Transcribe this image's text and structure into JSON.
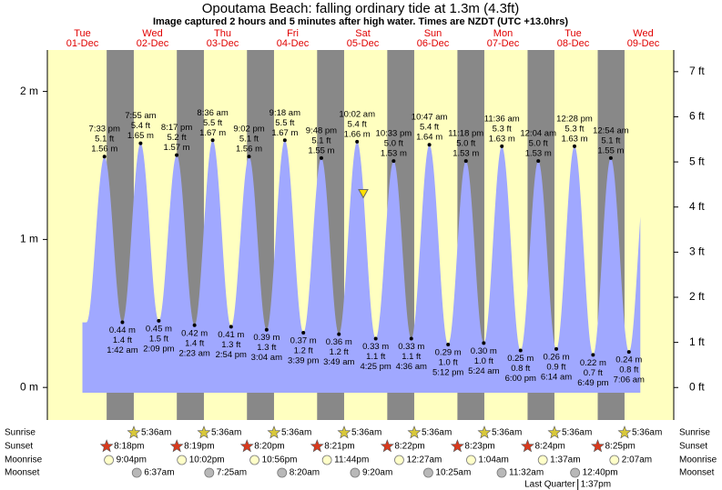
{
  "chart_data": {
    "type": "tide",
    "title": "Opoutama Beach: falling  ordinary tide at 1.3m (4.3ft)",
    "subtitle": "Image captured 2 hours and 5 minutes after high water. Times are NZDT (UTC +13.0hrs)",
    "current_height": 1.3,
    "ylim": [
      -0.22,
      2.28
    ],
    "yticks": [
      {
        "value": 0,
        "label": "0 m"
      },
      {
        "value": 1,
        "label": "1 m"
      },
      {
        "value": 2,
        "label": "2 m"
      }
    ],
    "y2lim": [
      -0.72,
      7.48
    ],
    "y2ticks": [
      {
        "value": 0,
        "label": "0 ft"
      },
      {
        "value": 1,
        "label": "1 ft"
      },
      {
        "value": 2,
        "label": "2 ft"
      },
      {
        "value": 3,
        "label": "3 ft"
      },
      {
        "value": 4,
        "label": "4 ft"
      },
      {
        "value": 5,
        "label": "5 ft"
      },
      {
        "value": 6,
        "label": "6 ft"
      },
      {
        "value": 7,
        "label": "7 ft"
      }
    ],
    "colors": {
      "day": "#ffffc0",
      "night": "#888888",
      "tide": "#a0a8ff",
      "sunrise": "#d8c83a",
      "sunset": "#d83a1e",
      "moonrise": "#ffffc8",
      "moonset": "#b8b8b8"
    },
    "row_labels": [
      "Sunrise",
      "Sunset",
      "Moonrise",
      "Moonset"
    ],
    "moon_phase": "Last Quarter",
    "moon_phase_time": "1:37pm",
    "days": [
      {
        "weekday": "Tue",
        "date": "01-Dec",
        "sunset": "8:18pm",
        "moonrise": "9:04pm",
        "tides": [
          {
            "time": "7:33 pm",
            "height": 1.56,
            "height_label": "1.56 m",
            "feet_label": "5.1 ft"
          }
        ]
      },
      {
        "weekday": "Wed",
        "date": "02-Dec",
        "sunrise": "5:36am",
        "sunset": "8:19pm",
        "moonrise": "10:02pm",
        "moonset": "6:37am",
        "tides": [
          {
            "time": "1:42 am",
            "height": 0.44,
            "height_label": "0.44 m",
            "feet_label": "1.4 ft"
          },
          {
            "time": "7:55 am",
            "height": 1.65,
            "height_label": "1.65 m",
            "feet_label": "5.4 ft"
          },
          {
            "time": "2:09 pm",
            "height": 0.45,
            "height_label": "0.45 m",
            "feet_label": "1.5 ft"
          },
          {
            "time": "8:17 pm",
            "height": 1.57,
            "height_label": "1.57 m",
            "feet_label": "5.2 ft"
          }
        ]
      },
      {
        "weekday": "Thu",
        "date": "03-Dec",
        "sunrise": "5:36am",
        "sunset": "8:20pm",
        "moonrise": "10:56pm",
        "moonset": "7:25am",
        "tides": [
          {
            "time": "2:23 am",
            "height": 0.42,
            "height_label": "0.42 m",
            "feet_label": "1.4 ft"
          },
          {
            "time": "8:36 am",
            "height": 1.67,
            "height_label": "1.67 m",
            "feet_label": "5.5 ft"
          },
          {
            "time": "2:54 pm",
            "height": 0.41,
            "height_label": "0.41 m",
            "feet_label": "1.3 ft"
          },
          {
            "time": "9:02 pm",
            "height": 1.56,
            "height_label": "1.56 m",
            "feet_label": "5.1 ft"
          }
        ]
      },
      {
        "weekday": "Fri",
        "date": "04-Dec",
        "sunrise": "5:36am",
        "sunset": "8:21pm",
        "moonrise": "11:44pm",
        "moonset": "8:20am",
        "tides": [
          {
            "time": "3:04 am",
            "height": 0.39,
            "height_label": "0.39 m",
            "feet_label": "1.3 ft"
          },
          {
            "time": "9:18 am",
            "height": 1.67,
            "height_label": "1.67 m",
            "feet_label": "5.5 ft"
          },
          {
            "time": "3:39 pm",
            "height": 0.37,
            "height_label": "0.37 m",
            "feet_label": "1.2 ft"
          },
          {
            "time": "9:48 pm",
            "height": 1.55,
            "height_label": "1.55 m",
            "feet_label": "5.1 ft"
          }
        ]
      },
      {
        "weekday": "Sat",
        "date": "05-Dec",
        "sunrise": "5:36am",
        "sunset": "8:22pm",
        "moonset": "9:20am",
        "tides": [
          {
            "time": "3:49 am",
            "height": 0.36,
            "height_label": "0.36 m",
            "feet_label": "1.2 ft"
          },
          {
            "time": "10:02 am",
            "height": 1.66,
            "height_label": "1.66 m",
            "feet_label": "5.4 ft"
          },
          {
            "time": "4:25 pm",
            "height": 0.33,
            "height_label": "0.33 m",
            "feet_label": "1.1 ft"
          },
          {
            "time": "10:33 pm",
            "height": 1.53,
            "height_label": "1.53 m",
            "feet_label": "5.0 ft"
          }
        ]
      },
      {
        "weekday": "Sun",
        "date": "06-Dec",
        "sunrise": "5:36am",
        "sunset": "8:23pm",
        "moonrise": "12:27am",
        "moonset": "10:25am",
        "tides": [
          {
            "time": "4:36 am",
            "height": 0.33,
            "height_label": "0.33 m",
            "feet_label": "1.1 ft"
          },
          {
            "time": "10:47 am",
            "height": 1.64,
            "height_label": "1.64 m",
            "feet_label": "5.4 ft"
          },
          {
            "time": "5:12 pm",
            "height": 0.29,
            "height_label": "0.29 m",
            "feet_label": "1.0 ft"
          },
          {
            "time": "11:18 pm",
            "height": 1.53,
            "height_label": "1.53 m",
            "feet_label": "5.0 ft"
          }
        ]
      },
      {
        "weekday": "Mon",
        "date": "07-Dec",
        "sunrise": "5:36am",
        "sunset": "8:24pm",
        "moonrise": "1:04am",
        "moonset": "11:32am",
        "tides": [
          {
            "time": "5:24 am",
            "height": 0.3,
            "height_label": "0.30 m",
            "feet_label": "1.0 ft"
          },
          {
            "time": "11:36 am",
            "height": 1.63,
            "height_label": "1.63 m",
            "feet_label": "5.3 ft"
          },
          {
            "time": "6:00 pm",
            "height": 0.25,
            "height_label": "0.25 m",
            "feet_label": "0.8 ft"
          }
        ]
      },
      {
        "weekday": "Tue",
        "date": "08-Dec",
        "sunrise": "5:36am",
        "sunset": "8:25pm",
        "moonrise": "1:37am",
        "moonset": "12:40pm",
        "tides": [
          {
            "time": "12:04 am",
            "height": 1.53,
            "height_label": "1.53 m",
            "feet_label": "5.0 ft"
          },
          {
            "time": "6:14 am",
            "height": 0.26,
            "height_label": "0.26 m",
            "feet_label": "0.9 ft"
          },
          {
            "time": "12:28 pm",
            "height": 1.63,
            "height_label": "1.63 m",
            "feet_label": "5.3 ft"
          },
          {
            "time": "6:49 pm",
            "height": 0.22,
            "height_label": "0.22 m",
            "feet_label": "0.7 ft"
          }
        ]
      },
      {
        "weekday": "Wed",
        "date": "09-Dec",
        "sunrise": "5:36am",
        "moonrise": "2:07am",
        "tides": [
          {
            "time": "12:54 am",
            "height": 1.55,
            "height_label": "1.55 m",
            "feet_label": "5.1 ft"
          },
          {
            "time": "7:06 am",
            "height": 0.24,
            "height_label": "0.24 m",
            "feet_label": "0.8 ft"
          }
        ]
      }
    ]
  }
}
